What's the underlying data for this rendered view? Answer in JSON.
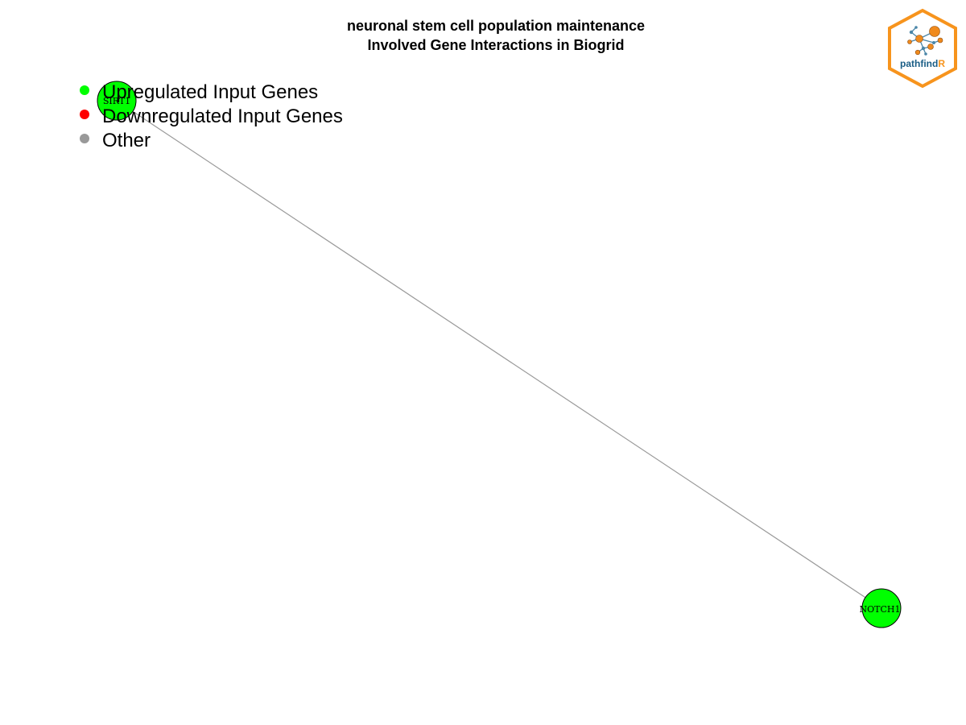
{
  "title": {
    "line1": "neuronal stem cell population maintenance",
    "line2": "Involved Gene Interactions in Biogrid"
  },
  "legend": [
    {
      "label": "Upregulated Input Genes",
      "color": "#00ff00"
    },
    {
      "label": "Downregulated Input Genes",
      "color": "#ff0000"
    },
    {
      "label": "Other",
      "color": "#999999"
    }
  ],
  "network": {
    "nodes": [
      {
        "id": "SIRT1",
        "label": "SIRT1",
        "status": "Upregulated Input Genes",
        "color": "#00ff00"
      },
      {
        "id": "NOTCH1",
        "label": "NOTCH1",
        "status": "Upregulated Input Genes",
        "color": "#00ff00"
      }
    ],
    "edges": [
      {
        "source": "SIRT1",
        "target": "NOTCH1",
        "color": "#999999"
      }
    ]
  },
  "logo": {
    "text_main": "pathfind",
    "text_accent": "R",
    "border_color": "#f7941d",
    "main_text_color": "#1b5e86",
    "accent_text_color": "#f7941d",
    "icon": "network-graph-icon"
  }
}
